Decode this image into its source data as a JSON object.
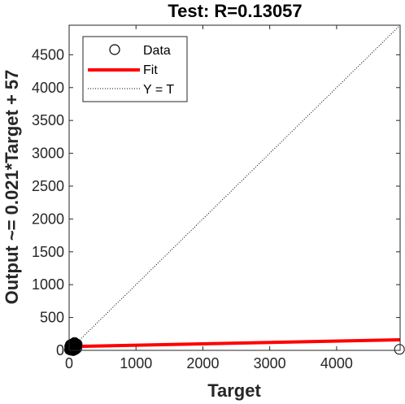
{
  "chart_data": {
    "type": "scatter",
    "title": "Test: R=0.13057",
    "xlabel": "Target",
    "ylabel": "Output ~= 0.021*Target + 57",
    "xlim": [
      0,
      4950
    ],
    "ylim": [
      0,
      4950
    ],
    "x_ticks": [
      0,
      1000,
      2000,
      3000,
      4000
    ],
    "y_ticks": [
      0,
      500,
      1000,
      1500,
      2000,
      2500,
      3000,
      3500,
      4000,
      4500
    ],
    "fit": {
      "slope": 0.021,
      "intercept": 57
    },
    "legend": {
      "position": "top-left",
      "entries": [
        "Data",
        "Fit",
        "Y = T"
      ]
    },
    "colors": {
      "fit": "#ff0000",
      "data_marker": "#000000",
      "identity_line": "#000000"
    },
    "series": [
      {
        "name": "Data",
        "points": [
          [
            5,
            10
          ],
          [
            10,
            25
          ],
          [
            15,
            40
          ],
          [
            20,
            5
          ],
          [
            25,
            55
          ],
          [
            30,
            20
          ],
          [
            35,
            70
          ],
          [
            40,
            35
          ],
          [
            45,
            50
          ],
          [
            50,
            15
          ],
          [
            55,
            80
          ],
          [
            60,
            30
          ],
          [
            65,
            60
          ],
          [
            70,
            45
          ],
          [
            75,
            90
          ],
          [
            80,
            25
          ],
          [
            85,
            65
          ],
          [
            90,
            100
          ],
          [
            95,
            40
          ],
          [
            100,
            75
          ],
          [
            105,
            55
          ],
          [
            110,
            85
          ],
          [
            115,
            30
          ],
          [
            120,
            95
          ],
          [
            8,
            60
          ],
          [
            18,
            85
          ],
          [
            28,
            10
          ],
          [
            38,
            95
          ],
          [
            48,
            70
          ],
          [
            58,
            5
          ],
          [
            68,
            110
          ],
          [
            78,
            55
          ],
          [
            88,
            20
          ],
          [
            98,
            105
          ],
          [
            108,
            65
          ],
          [
            12,
            45
          ],
          [
            22,
            75
          ],
          [
            32,
            50
          ],
          [
            42,
            15
          ],
          [
            52,
            100
          ],
          [
            62,
            80
          ],
          [
            72,
            35
          ],
          [
            82,
            120
          ],
          [
            92,
            10
          ],
          [
            102,
            45
          ],
          [
            40,
            0
          ],
          [
            60,
            -5
          ],
          [
            4940,
            15
          ]
        ]
      }
    ]
  }
}
